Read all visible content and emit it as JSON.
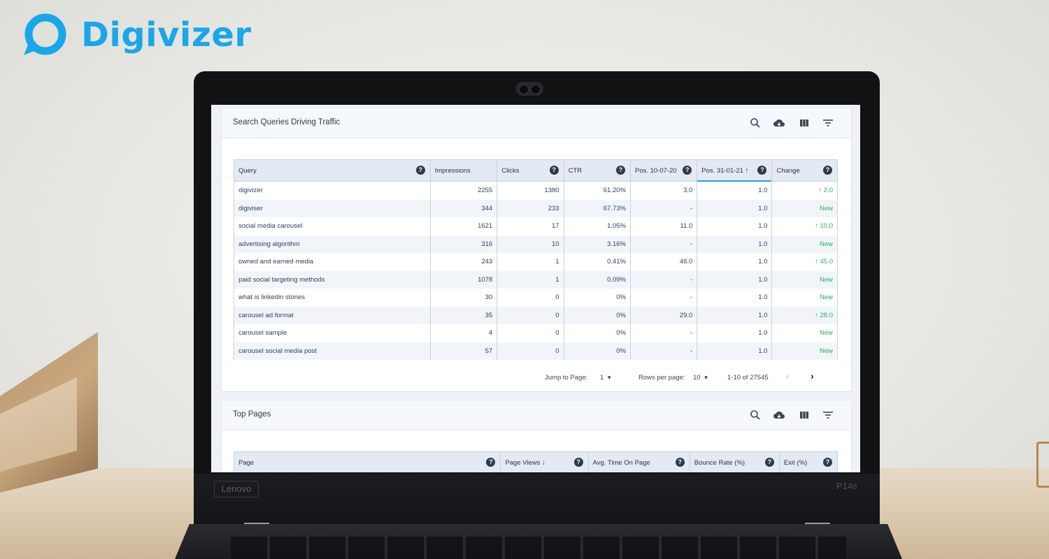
{
  "brand": {
    "name": "Digivizer",
    "color": "#1aa7ea"
  },
  "laptop": {
    "maker": "Lenovo",
    "model": "P14s"
  },
  "colors": {
    "accent": "#1aa7ea",
    "positive": "#22b35a",
    "header_bg": "#e4eaf4"
  },
  "queries_card": {
    "title": "Search Queries Driving Traffic",
    "tools": [
      "search-icon",
      "cloud-download-icon",
      "columns-icon",
      "filter-icon"
    ],
    "columns": [
      "Query",
      "Impressions",
      "Clicks",
      "CTR",
      "Pos. 10-07-20",
      "Pos. 31-01-21 ↑",
      "Change"
    ],
    "help_glyph": "?",
    "rows": [
      [
        "digivizer",
        "2255",
        "1380",
        "61.20%",
        "3.0",
        "1.0",
        "↑ 2.0"
      ],
      [
        "digiviser",
        "344",
        "233",
        "67.73%",
        "-",
        "1.0",
        "New"
      ],
      [
        "social media carousel",
        "1621",
        "17",
        "1.05%",
        "11.0",
        "1.0",
        "↑ 10.0"
      ],
      [
        "advertising algorithm",
        "316",
        "10",
        "3.16%",
        "-",
        "1.0",
        "New"
      ],
      [
        "owned and earned media",
        "243",
        "1",
        "0.41%",
        "46.0",
        "1.0",
        "↑ 45.0"
      ],
      [
        "paid social targeting methods",
        "1078",
        "1",
        "0.09%",
        "-",
        "1.0",
        "New"
      ],
      [
        "what is linkedin stories",
        "30",
        "0",
        "0%",
        "-",
        "1.0",
        "New"
      ],
      [
        "carousel ad format",
        "35",
        "0",
        "0%",
        "29.0",
        "1.0",
        "↑ 28.0"
      ],
      [
        "carousel sample",
        "4",
        "0",
        "0%",
        "-",
        "1.0",
        "New"
      ],
      [
        "carousel social media post",
        "57",
        "0",
        "0%",
        "-",
        "1.0",
        "New"
      ]
    ],
    "pagination": {
      "jump_label": "Jump to Page:",
      "jump_value": "1",
      "rows_label": "Rows per page:",
      "rows_value": "10",
      "range": "1-10 of 27545"
    }
  },
  "pages_card": {
    "title": "Top Pages",
    "tools": [
      "search-icon",
      "cloud-download-icon",
      "columns-icon",
      "filter-icon"
    ],
    "columns": [
      "Page",
      "Page Views ↓",
      "Avg. Time On Page",
      "Bounce Rate (%)",
      "Exit (%)"
    ]
  }
}
